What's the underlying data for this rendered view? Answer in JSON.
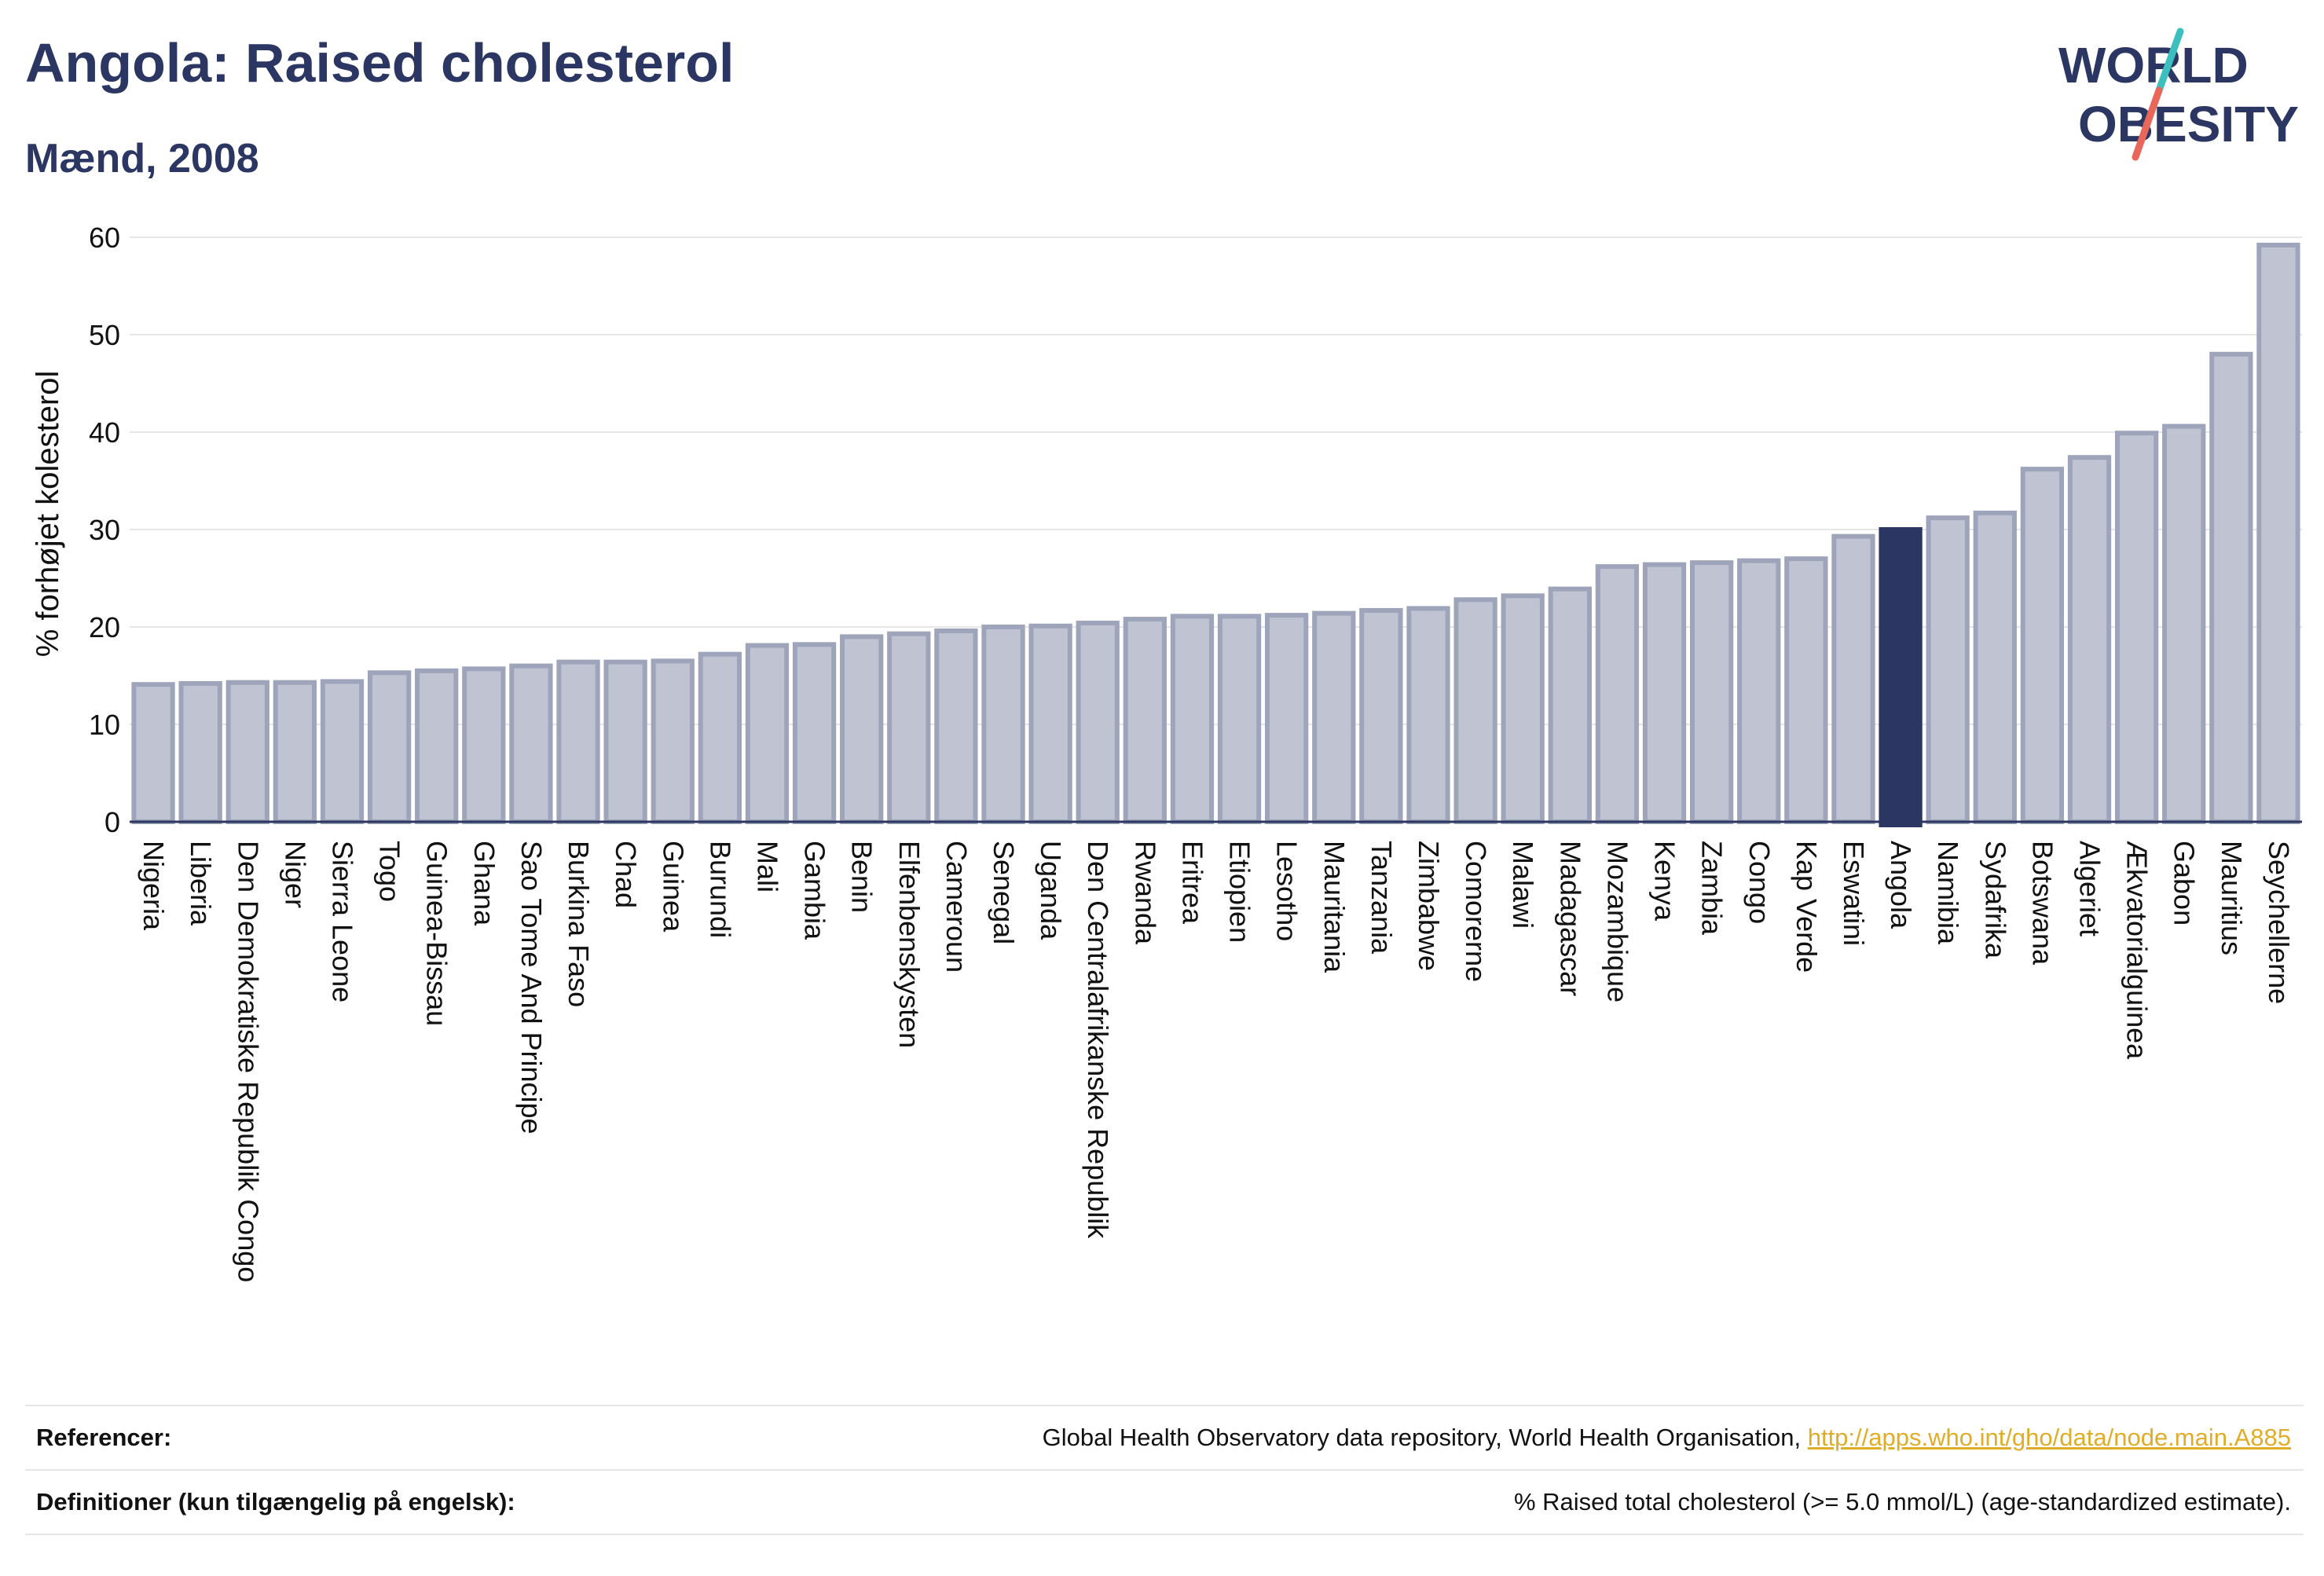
{
  "header": {
    "title": "Angola: Raised cholesterol",
    "subtitle": "Mænd, 2008"
  },
  "logo": {
    "line1": "WORLD",
    "line2": "OBESITY",
    "colors": {
      "text": "#2b3663",
      "teal": "#3bbfbf",
      "coral": "#e8665a"
    }
  },
  "colors": {
    "bar_fill": "#c0c4d2",
    "bar_stroke": "#9ea4ba",
    "highlight": "#2b3663",
    "grid": "#e6e6e6",
    "axis": "#2b3663"
  },
  "chart_data": {
    "type": "bar",
    "title": "Angola: Raised cholesterol",
    "subtitle": "Mænd, 2008",
    "ylabel": "% forhøjet kolesterol",
    "xlabel": "",
    "ylim": [
      0,
      60
    ],
    "yticks": [
      0,
      10,
      20,
      30,
      40,
      50,
      60
    ],
    "grid": true,
    "highlight": "Angola",
    "categories": [
      "Nigeria",
      "Liberia",
      "Den Demokratiske Republik Congo",
      "Niger",
      "Sierra Leone",
      "Togo",
      "Guinea-Bissau",
      "Ghana",
      "Sao Tome And Principe",
      "Burkina Faso",
      "Chad",
      "Guinea",
      "Burundi",
      "Mali",
      "Gambia",
      "Benin",
      "Elfenbenskysten",
      "Cameroun",
      "Senegal",
      "Uganda",
      "Den Centralafrikanske Republik",
      "Rwanda",
      "Eritrea",
      "Etiopien",
      "Lesotho",
      "Mauritania",
      "Tanzania",
      "Zimbabwe",
      "Comorerne",
      "Malawi",
      "Madagascar",
      "Mozambique",
      "Kenya",
      "Zambia",
      "Congo",
      "Kap Verde",
      "Eswatini",
      "Angola",
      "Namibia",
      "Sydafrika",
      "Botswana",
      "Algeriet",
      "Ækvatorialguinea",
      "Gabon",
      "Mauritius",
      "Seychellerne"
    ],
    "values": [
      14.1,
      14.2,
      14.3,
      14.3,
      14.4,
      15.3,
      15.5,
      15.7,
      16.0,
      16.4,
      16.4,
      16.5,
      17.2,
      18.1,
      18.2,
      19.0,
      19.3,
      19.6,
      20.0,
      20.1,
      20.4,
      20.8,
      21.1,
      21.1,
      21.2,
      21.4,
      21.7,
      21.9,
      22.8,
      23.2,
      23.9,
      26.2,
      26.4,
      26.6,
      26.8,
      27.0,
      29.3,
      30.0,
      31.2,
      31.7,
      36.2,
      37.4,
      39.9,
      40.6,
      48.0,
      59.2
    ]
  },
  "footer": {
    "references_label": "Referencer:",
    "references_text": "Global Health Observatory data repository, World Health Organisation, ",
    "references_link": "http://apps.who.int/gho/data/node.main.A885",
    "definitions_label": "Definitioner (kun tilgængelig på engelsk):",
    "definitions_text": "% Raised total cholesterol (>= 5.0 mmol/L) (age-standardized estimate)."
  }
}
